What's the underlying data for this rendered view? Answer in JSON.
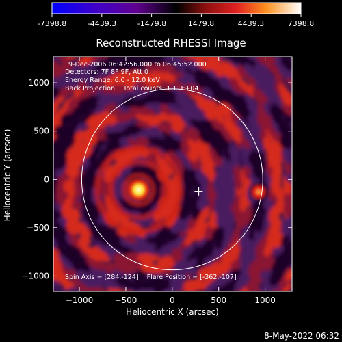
{
  "colorbar": {
    "tick_labels": [
      "-7398.8",
      "-4439.3",
      "-1479.8",
      "1479.8",
      "4439.3",
      "7398.8"
    ],
    "tick_values": [
      -7398.8,
      -4439.3,
      -1479.8,
      1479.8,
      4439.3,
      7398.8
    ],
    "range": [
      -7398.8,
      7398.8
    ]
  },
  "plot": {
    "title": "Reconstructed RHESSI Image",
    "info_lines": [
      "9-Dec-2006 06:42:56.000 to 06:45:52.000",
      "Detectors: 7F 8F 9F, Att 0",
      "Energy Range: 6.0 - 12.0 keV",
      "Back Projection    Total counts: 1.11E+04"
    ],
    "footer_text": "Spin Axis = [284,-124]    Flare Position = [-362,-107]",
    "xlabel": "Heliocentric X (arcsec)",
    "ylabel": "Heliocentric Y (arcsec)",
    "x_ticks": [
      {
        "value": -1000,
        "label": "−1000"
      },
      {
        "value": -500,
        "label": "−500"
      },
      {
        "value": 0,
        "label": "0"
      },
      {
        "value": 500,
        "label": "500"
      },
      {
        "value": 1000,
        "label": "1000"
      }
    ],
    "y_ticks": [
      {
        "value": 1000,
        "label": "1000"
      },
      {
        "value": 500,
        "label": "500"
      },
      {
        "value": 0,
        "label": "0"
      },
      {
        "value": -500,
        "label": "−500"
      },
      {
        "value": -1000,
        "label": "−1000"
      }
    ],
    "x_range": [
      -1280,
      1290
    ],
    "y_range": [
      -1160,
      1270
    ],
    "solar_disk_center": [
      0,
      0
    ],
    "solar_disk_radius": 975,
    "flare_source": [
      -362,
      -107
    ],
    "spin_axis": [
      284,
      -124
    ],
    "secondary_source": [
      930,
      -130
    ]
  },
  "timestamp": "8-May-2022 06:32",
  "colors": {
    "background": "#000000",
    "foreground": "#ffffff",
    "map_dark": "#2a0a38",
    "map_mid": "#4a1a60",
    "map_red": "#d8201c",
    "map_hot": "#ffff90"
  }
}
